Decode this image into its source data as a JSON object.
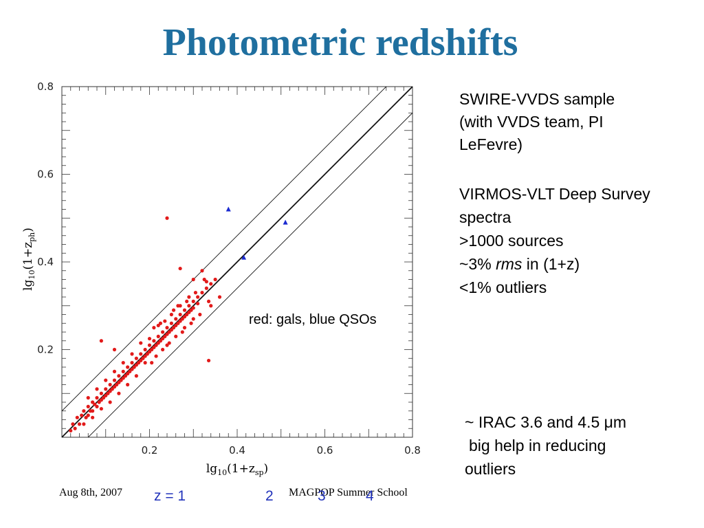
{
  "slide": {
    "title": "Photometric redshifts",
    "block1": [
      "SWIRE-VVDS sample",
      "(with VVDS team, PI",
      "LeFevre)"
    ],
    "block2": {
      "line1": "VIRMOS-VLT Deep Survey",
      "line2": "spectra",
      "line3": ">1000 sources",
      "line4_pre": "~3% ",
      "line4_em": "rms",
      "line4_post": " in (1+z)",
      "line5": "<1% outliers"
    },
    "block3": [
      "~ IRAC 3.6 and 4.5 μm",
      "big help in reducing",
      "outliers"
    ],
    "footer_date": "Aug 8th, 2007",
    "footer_school": "MAGPOP Summer School",
    "z_labels": [
      "z = 1",
      "2",
      "3",
      "4"
    ]
  },
  "chart_data": {
    "type": "scatter",
    "xlabel": "lg10(1+z_sp)",
    "ylabel": "lg10(1+z_ph)",
    "xlim": [
      0,
      0.8
    ],
    "ylim": [
      0,
      0.8
    ],
    "xticks": [
      "0.2",
      "0.4",
      "0.6",
      "0.8"
    ],
    "yticks": [
      "0.2",
      "0.4",
      "0.6",
      "0.8"
    ],
    "annotation": "red: gals, blue QSOs",
    "lines": [
      {
        "role": "one-to-one",
        "x": [
          0,
          0.8
        ],
        "y": [
          0,
          0.8
        ]
      },
      {
        "role": "upper-bound",
        "x": [
          0,
          0.8
        ],
        "y": [
          0.06,
          0.86
        ]
      },
      {
        "role": "lower-bound",
        "x": [
          0,
          0.8
        ],
        "y": [
          -0.06,
          0.74
        ]
      }
    ],
    "series": [
      {
        "name": "gals",
        "color": "#e21a1a",
        "marker": "dot",
        "points": [
          [
            0.02,
            0.015
          ],
          [
            0.025,
            0.03
          ],
          [
            0.03,
            0.02
          ],
          [
            0.035,
            0.045
          ],
          [
            0.04,
            0.03
          ],
          [
            0.045,
            0.05
          ],
          [
            0.05,
            0.06
          ],
          [
            0.055,
            0.045
          ],
          [
            0.06,
            0.07
          ],
          [
            0.06,
            0.05
          ],
          [
            0.065,
            0.06
          ],
          [
            0.07,
            0.08
          ],
          [
            0.07,
            0.06
          ],
          [
            0.075,
            0.075
          ],
          [
            0.08,
            0.09
          ],
          [
            0.08,
            0.07
          ],
          [
            0.085,
            0.08
          ],
          [
            0.09,
            0.1
          ],
          [
            0.09,
            0.085
          ],
          [
            0.095,
            0.09
          ],
          [
            0.1,
            0.11
          ],
          [
            0.1,
            0.095
          ],
          [
            0.105,
            0.1
          ],
          [
            0.11,
            0.12
          ],
          [
            0.11,
            0.105
          ],
          [
            0.115,
            0.11
          ],
          [
            0.12,
            0.13
          ],
          [
            0.12,
            0.115
          ],
          [
            0.125,
            0.12
          ],
          [
            0.13,
            0.14
          ],
          [
            0.13,
            0.125
          ],
          [
            0.135,
            0.13
          ],
          [
            0.14,
            0.15
          ],
          [
            0.14,
            0.135
          ],
          [
            0.145,
            0.14
          ],
          [
            0.15,
            0.16
          ],
          [
            0.15,
            0.145
          ],
          [
            0.155,
            0.15
          ],
          [
            0.16,
            0.17
          ],
          [
            0.16,
            0.155
          ],
          [
            0.165,
            0.16
          ],
          [
            0.17,
            0.18
          ],
          [
            0.17,
            0.165
          ],
          [
            0.175,
            0.17
          ],
          [
            0.18,
            0.19
          ],
          [
            0.18,
            0.175
          ],
          [
            0.185,
            0.18
          ],
          [
            0.19,
            0.2
          ],
          [
            0.19,
            0.185
          ],
          [
            0.195,
            0.19
          ],
          [
            0.2,
            0.21
          ],
          [
            0.2,
            0.195
          ],
          [
            0.205,
            0.2
          ],
          [
            0.21,
            0.22
          ],
          [
            0.21,
            0.205
          ],
          [
            0.215,
            0.21
          ],
          [
            0.22,
            0.23
          ],
          [
            0.22,
            0.215
          ],
          [
            0.225,
            0.22
          ],
          [
            0.23,
            0.24
          ],
          [
            0.23,
            0.225
          ],
          [
            0.235,
            0.23
          ],
          [
            0.24,
            0.25
          ],
          [
            0.24,
            0.235
          ],
          [
            0.245,
            0.24
          ],
          [
            0.25,
            0.26
          ],
          [
            0.25,
            0.245
          ],
          [
            0.255,
            0.25
          ],
          [
            0.26,
            0.27
          ],
          [
            0.26,
            0.255
          ],
          [
            0.265,
            0.26
          ],
          [
            0.27,
            0.28
          ],
          [
            0.27,
            0.265
          ],
          [
            0.275,
            0.27
          ],
          [
            0.28,
            0.29
          ],
          [
            0.28,
            0.275
          ],
          [
            0.285,
            0.28
          ],
          [
            0.29,
            0.3
          ],
          [
            0.29,
            0.285
          ],
          [
            0.295,
            0.29
          ],
          [
            0.3,
            0.31
          ],
          [
            0.3,
            0.295
          ],
          [
            0.31,
            0.32
          ],
          [
            0.31,
            0.305
          ],
          [
            0.32,
            0.33
          ],
          [
            0.33,
            0.34
          ],
          [
            0.34,
            0.35
          ],
          [
            0.35,
            0.36
          ],
          [
            0.21,
            0.25
          ],
          [
            0.22,
            0.255
          ],
          [
            0.23,
            0.2
          ],
          [
            0.24,
            0.21
          ],
          [
            0.25,
            0.28
          ],
          [
            0.26,
            0.23
          ],
          [
            0.27,
            0.3
          ],
          [
            0.28,
            0.25
          ],
          [
            0.29,
            0.32
          ],
          [
            0.3,
            0.27
          ],
          [
            0.18,
            0.215
          ],
          [
            0.19,
            0.17
          ],
          [
            0.2,
            0.225
          ],
          [
            0.17,
            0.14
          ],
          [
            0.16,
            0.19
          ],
          [
            0.15,
            0.12
          ],
          [
            0.14,
            0.17
          ],
          [
            0.13,
            0.1
          ],
          [
            0.12,
            0.15
          ],
          [
            0.11,
            0.08
          ],
          [
            0.1,
            0.13
          ],
          [
            0.09,
            0.065
          ],
          [
            0.08,
            0.11
          ],
          [
            0.07,
            0.045
          ],
          [
            0.06,
            0.09
          ],
          [
            0.05,
            0.03
          ],
          [
            0.265,
            0.3
          ],
          [
            0.275,
            0.24
          ],
          [
            0.285,
            0.31
          ],
          [
            0.295,
            0.26
          ],
          [
            0.305,
            0.33
          ],
          [
            0.315,
            0.28
          ],
          [
            0.325,
            0.36
          ],
          [
            0.335,
            0.31
          ],
          [
            0.235,
            0.265
          ],
          [
            0.245,
            0.215
          ],
          [
            0.255,
            0.29
          ],
          [
            0.215,
            0.185
          ],
          [
            0.225,
            0.26
          ],
          [
            0.205,
            0.17
          ],
          [
            0.09,
            0.22
          ],
          [
            0.24,
            0.5
          ],
          [
            0.27,
            0.385
          ],
          [
            0.33,
            0.355
          ],
          [
            0.335,
            0.175
          ],
          [
            0.3,
            0.36
          ],
          [
            0.36,
            0.32
          ],
          [
            0.12,
            0.2
          ],
          [
            0.34,
            0.3
          ],
          [
            0.32,
            0.38
          ]
        ]
      },
      {
        "name": "QSOs",
        "color": "#1a2ad0",
        "marker": "triangle",
        "points": [
          [
            0.38,
            0.52
          ],
          [
            0.415,
            0.41
          ],
          [
            0.51,
            0.49
          ]
        ]
      }
    ]
  }
}
